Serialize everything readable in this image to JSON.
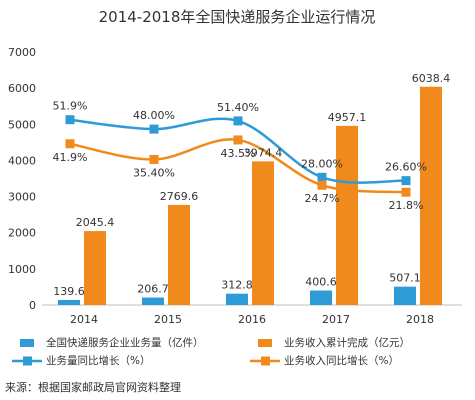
{
  "chart_data": {
    "type": "bar",
    "title": "2014-2018年全国快递服务企业运行情况",
    "categories": [
      "2014",
      "2015",
      "2016",
      "2017",
      "2018"
    ],
    "ylim": [
      0,
      7000
    ],
    "yticks": [
      0,
      1000,
      2000,
      3000,
      4000,
      5000,
      6000,
      7000
    ],
    "bar_series": [
      {
        "name": "全国快递服务企业业务量（亿件）",
        "values": [
          139.6,
          206.7,
          312.8,
          400.6,
          507.1
        ],
        "labels": [
          "139.6",
          "206.7",
          "312.8",
          "400.6",
          "507.1"
        ],
        "color": "#2e9bd6"
      },
      {
        "name": "业务收入累计完成（亿元）",
        "values": [
          2045.4,
          2769.6,
          3974.4,
          4957.1,
          6038.4
        ],
        "labels": [
          "2045.4",
          "2769.6",
          "3974.4",
          "4957.1",
          "6038.4"
        ],
        "color": "#f08a1c"
      }
    ],
    "line_series": [
      {
        "name": "业务量同比增长（%）",
        "values": [
          51.9,
          48.0,
          51.4,
          28.0,
          26.6
        ],
        "labels": [
          "51.9%",
          "48.00%",
          "51.40%",
          "28.00%",
          "26.60%"
        ],
        "color": "#2e9bd6"
      },
      {
        "name": "业务收入同比增长（%）",
        "values": [
          41.9,
          35.4,
          43.5,
          24.7,
          21.8
        ],
        "labels": [
          "41.9%",
          "35.40%",
          "43.5%",
          "24.7%",
          "21.8%"
        ],
        "color": "#f08a1c"
      }
    ],
    "grid": false,
    "legend": "bottom"
  },
  "source": "来源：根据国家邮政局官网资料整理"
}
